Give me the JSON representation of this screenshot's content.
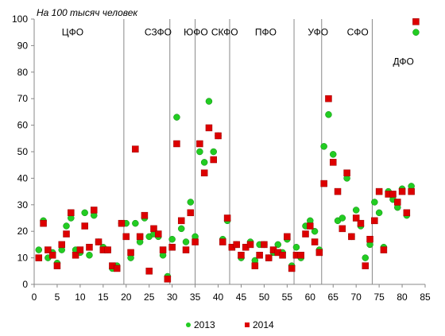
{
  "chart_data": {
    "type": "scatter",
    "unit_label": "На 100 тысяч человек",
    "xlim": [
      0,
      85
    ],
    "ylim": [
      0,
      100
    ],
    "x_ticks": [
      0,
      5,
      10,
      15,
      20,
      25,
      30,
      35,
      40,
      45,
      50,
      55,
      60,
      65,
      70,
      75,
      80,
      85
    ],
    "y_ticks": [
      0,
      10,
      20,
      30,
      40,
      50,
      60,
      70,
      80,
      90,
      100
    ],
    "grid": false,
    "legend_placement": "bottom",
    "region_dividers": [
      19.5,
      29.5,
      35.0,
      42.5,
      56.5,
      62.5,
      73.5
    ],
    "regions": [
      {
        "label": "ЦФО",
        "x": 6,
        "y": 95
      },
      {
        "label": "СЗФО",
        "x": 24,
        "y": 95
      },
      {
        "label": "ЮФО",
        "x": 32.5,
        "y": 95
      },
      {
        "label": "СКФО",
        "x": 38.5,
        "y": 95
      },
      {
        "label": "ПФО",
        "x": 48,
        "y": 95
      },
      {
        "label": "УФО",
        "x": 59.5,
        "y": 95
      },
      {
        "label": "СФО",
        "x": 68,
        "y": 95
      },
      {
        "label": "ДФО",
        "x": 78,
        "y": 84
      }
    ],
    "series": [
      {
        "name": "2013",
        "marker": "circle",
        "color": "#22cc22",
        "points": [
          [
            1,
            13
          ],
          [
            2,
            24
          ],
          [
            3,
            10
          ],
          [
            4,
            12
          ],
          [
            5,
            8
          ],
          [
            6,
            13
          ],
          [
            7,
            22
          ],
          [
            8,
            25
          ],
          [
            9,
            13
          ],
          [
            10,
            12
          ],
          [
            11,
            27
          ],
          [
            12,
            11
          ],
          [
            13,
            26
          ],
          [
            14,
            16
          ],
          [
            15,
            14
          ],
          [
            16,
            13
          ],
          [
            17,
            6
          ],
          [
            18,
            7
          ],
          [
            19,
            23
          ],
          [
            20,
            23
          ],
          [
            21,
            10
          ],
          [
            22,
            23
          ],
          [
            23,
            16
          ],
          [
            24,
            25
          ],
          [
            25,
            18
          ],
          [
            26,
            19
          ],
          [
            27,
            18
          ],
          [
            28,
            11
          ],
          [
            29,
            3
          ],
          [
            30,
            17
          ],
          [
            31,
            63
          ],
          [
            32,
            21
          ],
          [
            33,
            16
          ],
          [
            34,
            31
          ],
          [
            35,
            18
          ],
          [
            36,
            50
          ],
          [
            37,
            46
          ],
          [
            38,
            69
          ],
          [
            39,
            50
          ],
          [
            40,
            56
          ],
          [
            41,
            17
          ],
          [
            42,
            24
          ],
          [
            43,
            14
          ],
          [
            44,
            15
          ],
          [
            45,
            10
          ],
          [
            46,
            14
          ],
          [
            47,
            16
          ],
          [
            48,
            9
          ],
          [
            49,
            15
          ],
          [
            50,
            15
          ],
          [
            51,
            10
          ],
          [
            52,
            12
          ],
          [
            53,
            15
          ],
          [
            54,
            12
          ],
          [
            55,
            17
          ],
          [
            56,
            7
          ],
          [
            57,
            14
          ],
          [
            58,
            10
          ],
          [
            59,
            22
          ],
          [
            60,
            24
          ],
          [
            61,
            20
          ],
          [
            62,
            13
          ],
          [
            63,
            52
          ],
          [
            64,
            64
          ],
          [
            65,
            49
          ],
          [
            66,
            24
          ],
          [
            67,
            25
          ],
          [
            68,
            40
          ],
          [
            69,
            18
          ],
          [
            70,
            28
          ],
          [
            71,
            22
          ],
          [
            72,
            10
          ],
          [
            73,
            15
          ],
          [
            74,
            31
          ],
          [
            75,
            27
          ],
          [
            76,
            14
          ],
          [
            77,
            35
          ],
          [
            78,
            32
          ],
          [
            79,
            29
          ],
          [
            80,
            36
          ],
          [
            81,
            26
          ],
          [
            82,
            37
          ],
          [
            83,
            95
          ]
        ]
      },
      {
        "name": "2014",
        "marker": "square",
        "color": "#dd0000",
        "points": [
          [
            1,
            10
          ],
          [
            2,
            23
          ],
          [
            3,
            13
          ],
          [
            4,
            11
          ],
          [
            5,
            7
          ],
          [
            6,
            15
          ],
          [
            7,
            19
          ],
          [
            8,
            27
          ],
          [
            9,
            11
          ],
          [
            10,
            13
          ],
          [
            11,
            22
          ],
          [
            12,
            14
          ],
          [
            13,
            28
          ],
          [
            14,
            16
          ],
          [
            15,
            13
          ],
          [
            16,
            13
          ],
          [
            17,
            7
          ],
          [
            18,
            6
          ],
          [
            19,
            23
          ],
          [
            20,
            18
          ],
          [
            21,
            12
          ],
          [
            22,
            51
          ],
          [
            23,
            18
          ],
          [
            24,
            26
          ],
          [
            25,
            5
          ],
          [
            26,
            21
          ],
          [
            27,
            19
          ],
          [
            28,
            13
          ],
          [
            29,
            2
          ],
          [
            30,
            14
          ],
          [
            31,
            53
          ],
          [
            32,
            24
          ],
          [
            33,
            13
          ],
          [
            34,
            27
          ],
          [
            35,
            16
          ],
          [
            36,
            53
          ],
          [
            37,
            42
          ],
          [
            38,
            59
          ],
          [
            39,
            47
          ],
          [
            40,
            56
          ],
          [
            41,
            16
          ],
          [
            42,
            25
          ],
          [
            43,
            14
          ],
          [
            44,
            15
          ],
          [
            45,
            11
          ],
          [
            46,
            14
          ],
          [
            47,
            15
          ],
          [
            48,
            7
          ],
          [
            49,
            11
          ],
          [
            50,
            15
          ],
          [
            51,
            10
          ],
          [
            52,
            13
          ],
          [
            53,
            12
          ],
          [
            54,
            11
          ],
          [
            55,
            18
          ],
          [
            56,
            6
          ],
          [
            57,
            11
          ],
          [
            58,
            11
          ],
          [
            59,
            19
          ],
          [
            60,
            22
          ],
          [
            61,
            16
          ],
          [
            62,
            12
          ],
          [
            63,
            38
          ],
          [
            64,
            70
          ],
          [
            65,
            46
          ],
          [
            66,
            35
          ],
          [
            67,
            21
          ],
          [
            68,
            42
          ],
          [
            69,
            18
          ],
          [
            70,
            25
          ],
          [
            71,
            23
          ],
          [
            72,
            7
          ],
          [
            73,
            17
          ],
          [
            74,
            24
          ],
          [
            75,
            35
          ],
          [
            76,
            13
          ],
          [
            77,
            34
          ],
          [
            78,
            34
          ],
          [
            79,
            31
          ],
          [
            80,
            35
          ],
          [
            81,
            27
          ],
          [
            82,
            35
          ],
          [
            83,
            99
          ]
        ]
      }
    ]
  },
  "colors": {
    "axis": "#888888",
    "divider": "#888888",
    "series_2013": "#22cc22",
    "series_2014": "#dd0000"
  }
}
